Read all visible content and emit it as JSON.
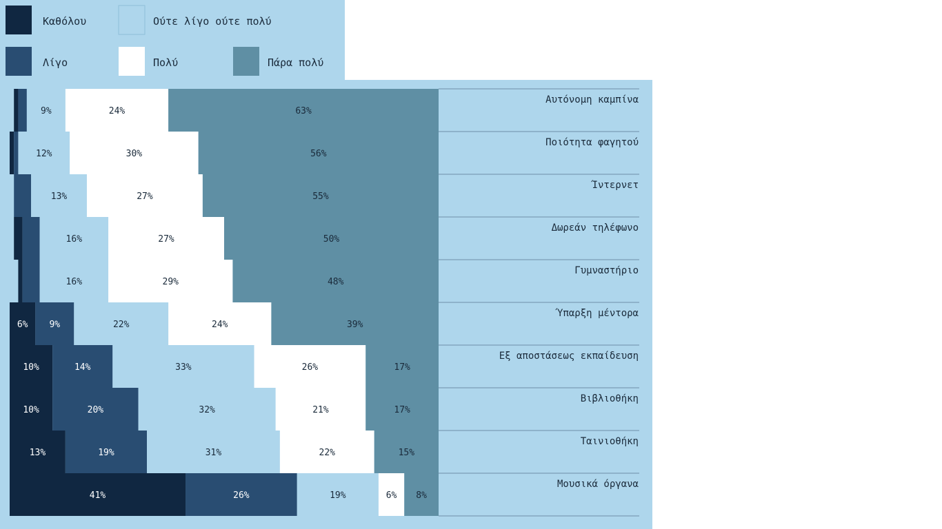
{
  "chart_data": {
    "type": "bar",
    "orientation": "horizontal",
    "stacked": true,
    "title": "",
    "xlabel": "",
    "ylabel": "",
    "xlim": [
      0,
      100
    ],
    "legend_position": "top-left",
    "categories": [
      "Αυτόνομη καμπίνα",
      "Ποιότητα φαγητού",
      "Ίντερνετ",
      "Δωρεάν τηλέφωνο",
      "Γυμναστήριο",
      "Ύπαρξη μέντορα",
      "Εξ αποστάσεως εκπαίδευση",
      "Βιβλιοθήκη",
      "Ταινιοθήκη",
      "Μουσικά όργανα"
    ],
    "series": [
      {
        "name": "Καθόλου",
        "color": "#102741",
        "values": [
          1,
          1,
          0,
          2,
          1,
          6,
          10,
          10,
          13,
          41
        ]
      },
      {
        "name": "Λίγο",
        "color": "#294d72",
        "values": [
          2,
          1,
          4,
          4,
          4,
          9,
          14,
          20,
          19,
          26
        ]
      },
      {
        "name": "Ούτε λίγο ούτε πολύ",
        "color": "#aed6ec",
        "values": [
          9,
          12,
          13,
          16,
          16,
          22,
          33,
          32,
          31,
          19
        ]
      },
      {
        "name": "Πολύ",
        "color": "#ffffff",
        "values": [
          24,
          30,
          27,
          27,
          29,
          24,
          26,
          21,
          22,
          6
        ]
      },
      {
        "name": "Πάρα πολύ",
        "color": "#5f8fa4",
        "values": [
          63,
          56,
          55,
          50,
          48,
          39,
          17,
          17,
          15,
          8
        ]
      }
    ],
    "label_colors": [
      "#ffffff",
      "#ffffff",
      "#1a2a3a",
      "#1a2a3a",
      "#1a2a3a"
    ],
    "value_suffix": "%",
    "label_threshold": 6
  }
}
